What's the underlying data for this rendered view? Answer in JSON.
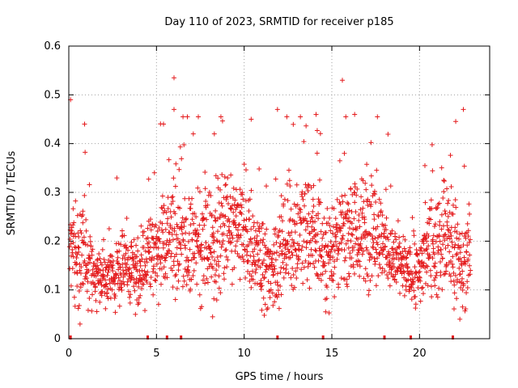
{
  "chart_data": {
    "type": "scatter",
    "title": "Day 110 of 2023, SRMTID for receiver p185",
    "xlabel": "GPS time / hours",
    "ylabel": "SRMTID / TECUs",
    "xlim": [
      0,
      24
    ],
    "ylim": [
      0,
      0.6
    ],
    "xticks": [
      0,
      5,
      10,
      15,
      20
    ],
    "yticks": [
      0,
      0.1,
      0.2,
      0.3,
      0.4,
      0.5,
      0.6
    ],
    "ytick_labels": [
      "0",
      "0.1",
      "0.2",
      "0.3",
      "0.4",
      "0.5",
      "0.6"
    ],
    "grid": true,
    "marker": "+",
    "color": "#e41a1c",
    "series": [
      {
        "name": "SRMTID",
        "envelope_hours": [
          0,
          0.5,
          1,
          1.5,
          2,
          2.5,
          3,
          3.5,
          4,
          4.5,
          5,
          5.5,
          6,
          6.5,
          7,
          7.5,
          8,
          8.5,
          9,
          9.5,
          10,
          10.5,
          11,
          11.5,
          12,
          12.5,
          13,
          13.5,
          14,
          14.5,
          15,
          15.5,
          16,
          16.5,
          17,
          17.5,
          18,
          18.5,
          19,
          19.5,
          20,
          20.5,
          21,
          21.5,
          22,
          22.5,
          22.9
        ],
        "median": [
          0.17,
          0.18,
          0.16,
          0.13,
          0.13,
          0.12,
          0.14,
          0.14,
          0.13,
          0.16,
          0.19,
          0.2,
          0.2,
          0.19,
          0.19,
          0.2,
          0.2,
          0.2,
          0.22,
          0.22,
          0.22,
          0.18,
          0.15,
          0.14,
          0.18,
          0.2,
          0.21,
          0.22,
          0.21,
          0.18,
          0.18,
          0.22,
          0.24,
          0.21,
          0.22,
          0.22,
          0.2,
          0.16,
          0.15,
          0.13,
          0.14,
          0.2,
          0.19,
          0.22,
          0.19,
          0.13,
          0.19
        ],
        "spread": [
          0.09,
          0.09,
          0.1,
          0.05,
          0.05,
          0.05,
          0.06,
          0.06,
          0.05,
          0.07,
          0.09,
          0.1,
          0.1,
          0.09,
          0.09,
          0.1,
          0.1,
          0.1,
          0.1,
          0.1,
          0.1,
          0.09,
          0.08,
          0.07,
          0.09,
          0.1,
          0.1,
          0.1,
          0.1,
          0.09,
          0.09,
          0.1,
          0.11,
          0.1,
          0.1,
          0.1,
          0.09,
          0.07,
          0.06,
          0.05,
          0.07,
          0.09,
          0.09,
          0.1,
          0.09,
          0.08,
          0.08
        ]
      }
    ],
    "notable_points": [
      {
        "x": 0.1,
        "y": 0.49
      },
      {
        "x": 0.9,
        "y": 0.44
      },
      {
        "x": 5.4,
        "y": 0.44
      },
      {
        "x": 6.0,
        "y": 0.535
      },
      {
        "x": 6.0,
        "y": 0.47
      },
      {
        "x": 7.1,
        "y": 0.42
      },
      {
        "x": 8.3,
        "y": 0.42
      },
      {
        "x": 10.4,
        "y": 0.45
      },
      {
        "x": 11.9,
        "y": 0.47
      },
      {
        "x": 14.1,
        "y": 0.46
      },
      {
        "x": 15.6,
        "y": 0.53
      },
      {
        "x": 16.3,
        "y": 0.46
      },
      {
        "x": 22.5,
        "y": 0.47
      },
      {
        "x": 11.3,
        "y": 0.06
      },
      {
        "x": 3.8,
        "y": 0.05
      },
      {
        "x": 8.2,
        "y": 0.045
      },
      {
        "x": 22.3,
        "y": 0.04
      }
    ],
    "data_gap_markers_x": [
      0.1,
      4.5,
      5.6,
      6.4,
      11.9,
      14.5,
      18.0,
      19.5,
      21.9
    ]
  }
}
